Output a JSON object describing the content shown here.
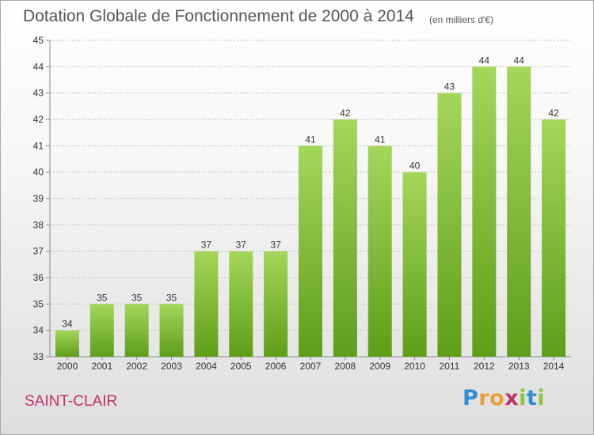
{
  "header": {
    "title": "Dotation Globale de Fonctionnement de 2000 à 2014",
    "unit": "(en milliers d'€)"
  },
  "footer": {
    "commune": "SAINT-CLAIR",
    "brand_letters": [
      "P",
      "r",
      "o",
      "x",
      "i",
      "t",
      "i"
    ],
    "brand_colors": [
      "#2d8fd6",
      "#e8a13a",
      "#e8a13a",
      "#c0306a",
      "#8cc43a",
      "#2d8fd6",
      "#8cc43a"
    ]
  },
  "colors": {
    "bar_top": "#a4d65a",
    "bar_bottom": "#5f9e18",
    "grid": "#bdbdbd",
    "axis_text": "#333333"
  },
  "chart_data": {
    "type": "bar",
    "categories": [
      "2000",
      "2001",
      "2002",
      "2003",
      "2004",
      "2005",
      "2006",
      "2007",
      "2008",
      "2009",
      "2010",
      "2011",
      "2012",
      "2013",
      "2014"
    ],
    "values": [
      34,
      35,
      35,
      35,
      37,
      37,
      37,
      41,
      42,
      41,
      40,
      43,
      44,
      44,
      42
    ],
    "ylim": [
      33,
      45
    ],
    "yticks": [
      33,
      34,
      35,
      36,
      37,
      38,
      39,
      40,
      41,
      42,
      43,
      44,
      45
    ],
    "grid": true,
    "data_labels": true
  }
}
